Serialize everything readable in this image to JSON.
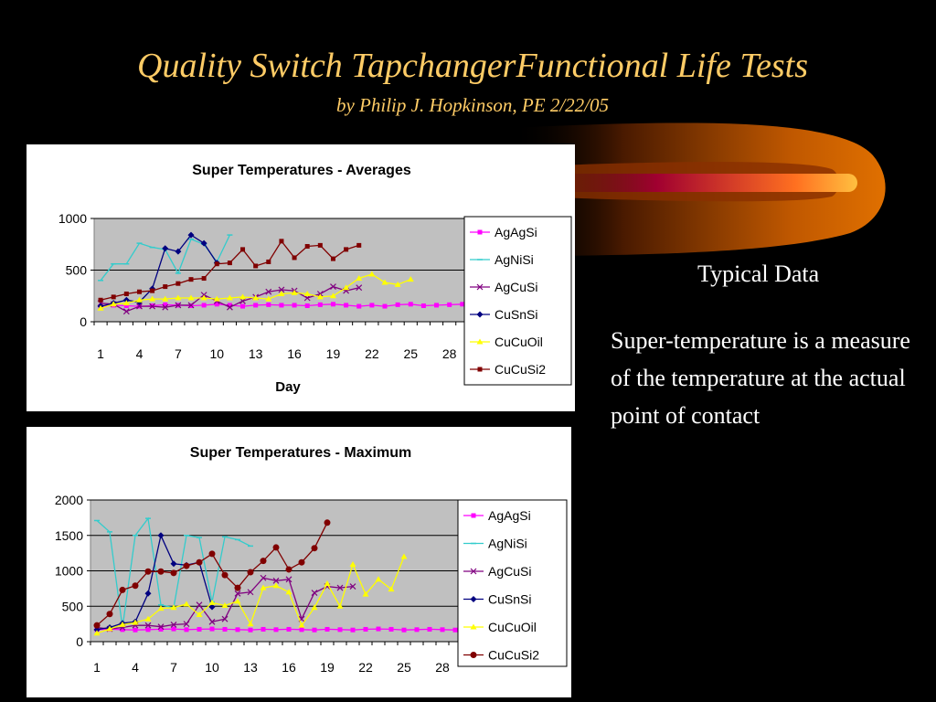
{
  "slide": {
    "title": "Quality Switch TapchangerFunctional Life Tests",
    "subtitle": "by Philip J. Hopkinson, PE   2/22/05",
    "typical_label": "Typical Data",
    "description": "Super-temperature is a measure of the temperature at the actual point of contact"
  },
  "chart_data": [
    {
      "type": "line",
      "title": "Super Temperatures - Averages",
      "xlabel": "Day",
      "ylabel": "",
      "x_ticks": [
        "1",
        "4",
        "7",
        "10",
        "13",
        "16",
        "19",
        "22",
        "25",
        "28"
      ],
      "xlim": [
        1,
        30
      ],
      "ylim": [
        0,
        1000
      ],
      "y_ticks": [
        "0",
        "500",
        "1000"
      ],
      "grid": "horizontal",
      "legend": "right",
      "series": [
        {
          "name": "AgAgSi",
          "color": "#FF00FF",
          "marker": "square",
          "x": [
            1,
            2,
            3,
            4,
            5,
            6,
            7,
            8,
            9,
            10,
            11,
            12,
            13,
            14,
            15,
            16,
            17,
            18,
            19,
            20,
            21,
            22,
            23,
            24,
            25,
            26,
            27,
            28,
            29,
            30
          ],
          "values": [
            150,
            160,
            155,
            150,
            155,
            165,
            160,
            155,
            160,
            170,
            160,
            150,
            160,
            165,
            160,
            160,
            155,
            165,
            170,
            160,
            150,
            160,
            150,
            165,
            170,
            155,
            160,
            165,
            170,
            150
          ]
        },
        {
          "name": "AgNiSi",
          "color": "#33CCCC",
          "marker": "dash",
          "x": [
            1,
            2,
            3,
            4,
            5,
            6,
            7,
            8,
            9,
            10,
            11
          ],
          "values": [
            400,
            560,
            560,
            760,
            720,
            700,
            470,
            800,
            750,
            580,
            840
          ]
        },
        {
          "name": "AgCuSi",
          "color": "#800080",
          "marker": "cross",
          "x": [
            1,
            2,
            3,
            4,
            5,
            6,
            7,
            8,
            9,
            10,
            11,
            12,
            13,
            14,
            15,
            16,
            17,
            18,
            19,
            20,
            21
          ],
          "values": [
            180,
            170,
            100,
            150,
            150,
            140,
            160,
            160,
            260,
            200,
            140,
            200,
            240,
            290,
            310,
            300,
            230,
            270,
            340,
            300,
            330
          ]
        },
        {
          "name": "CuSnSi",
          "color": "#000080",
          "marker": "diamond",
          "x": [
            1,
            2,
            3,
            4,
            5,
            6,
            7,
            8,
            9,
            10
          ],
          "values": [
            150,
            180,
            210,
            190,
            320,
            710,
            680,
            840,
            760,
            570
          ]
        },
        {
          "name": "CuCuOil",
          "color": "#FFFF00",
          "marker": "triangle",
          "x": [
            1,
            2,
            3,
            4,
            5,
            6,
            7,
            8,
            9,
            10,
            11,
            12,
            13,
            14,
            15,
            16,
            17,
            18,
            19,
            20,
            21,
            22,
            23,
            24,
            25
          ],
          "values": [
            130,
            170,
            180,
            210,
            220,
            220,
            230,
            230,
            230,
            220,
            230,
            240,
            230,
            220,
            270,
            280,
            270,
            240,
            250,
            330,
            420,
            460,
            380,
            360,
            410
          ]
        },
        {
          "name": "CuCuSi2",
          "color": "#800000",
          "marker": "square",
          "x": [
            1,
            2,
            3,
            4,
            5,
            6,
            7,
            8,
            9,
            10,
            11,
            12,
            13,
            14,
            15,
            16,
            17,
            18,
            19,
            20,
            21
          ],
          "values": [
            210,
            240,
            270,
            290,
            300,
            340,
            370,
            410,
            420,
            560,
            570,
            700,
            540,
            580,
            780,
            620,
            730,
            740,
            610,
            700,
            740
          ]
        }
      ]
    },
    {
      "type": "line",
      "title": "Super Temperatures - Maximum",
      "xlabel": "",
      "ylabel": "",
      "x_ticks": [
        "1",
        "4",
        "7",
        "10",
        "13",
        "16",
        "19",
        "22",
        "25",
        "28"
      ],
      "xlim": [
        1,
        30
      ],
      "ylim": [
        0,
        2000
      ],
      "y_ticks": [
        "0",
        "500",
        "1000",
        "1500",
        "2000"
      ],
      "grid": "horizontal",
      "legend": "right",
      "series": [
        {
          "name": "AgAgSi",
          "color": "#FF00FF",
          "marker": "square",
          "x": [
            1,
            2,
            3,
            4,
            5,
            6,
            7,
            8,
            9,
            10,
            11,
            12,
            13,
            14,
            15,
            16,
            17,
            18,
            19,
            20,
            21,
            22,
            23,
            24,
            25,
            26,
            27,
            28,
            29,
            30
          ],
          "values": [
            170,
            175,
            170,
            165,
            170,
            175,
            180,
            170,
            175,
            180,
            175,
            170,
            165,
            175,
            170,
            175,
            170,
            165,
            175,
            170,
            165,
            175,
            180,
            175,
            165,
            170,
            175,
            170,
            165,
            175
          ]
        },
        {
          "name": "AgNiSi",
          "color": "#33CCCC",
          "marker": "dash",
          "x": [
            1,
            2,
            3,
            4,
            5,
            6,
            7,
            8,
            9,
            10,
            11,
            12,
            13
          ],
          "values": [
            1710,
            1550,
            200,
            1500,
            1740,
            520,
            480,
            1500,
            1470,
            560,
            1480,
            1440,
            1350
          ]
        },
        {
          "name": "AgCuSi",
          "color": "#800080",
          "marker": "cross",
          "x": [
            1,
            2,
            3,
            4,
            5,
            6,
            7,
            8,
            9,
            10,
            11,
            12,
            13,
            14,
            15,
            16,
            17,
            18,
            19,
            20,
            21
          ],
          "values": [
            200,
            180,
            200,
            230,
            230,
            210,
            240,
            250,
            520,
            280,
            320,
            680,
            700,
            900,
            860,
            880,
            320,
            690,
            780,
            760,
            780
          ]
        },
        {
          "name": "CuSnSi",
          "color": "#000080",
          "marker": "diamond",
          "x": [
            1,
            2,
            3,
            4,
            5,
            6,
            7,
            8,
            9,
            10
          ],
          "values": [
            170,
            200,
            260,
            280,
            680,
            1500,
            1100,
            1080,
            1120,
            490
          ]
        },
        {
          "name": "CuCuOil",
          "color": "#FFFF00",
          "marker": "triangle",
          "x": [
            1,
            2,
            3,
            4,
            5,
            6,
            7,
            8,
            9,
            10,
            11,
            12,
            13,
            14,
            15,
            16,
            17,
            18,
            19,
            20,
            21,
            22,
            23,
            24,
            25
          ],
          "values": [
            120,
            180,
            240,
            270,
            320,
            470,
            480,
            530,
            380,
            550,
            510,
            570,
            250,
            760,
            790,
            700,
            230,
            480,
            820,
            500,
            1090,
            670,
            880,
            740,
            1200
          ]
        },
        {
          "name": "CuCuSi2",
          "color": "#800000",
          "marker": "circle",
          "x": [
            1,
            2,
            3,
            4,
            5,
            6,
            7,
            8,
            9,
            10,
            11,
            12,
            13,
            14,
            15,
            16,
            17,
            18,
            19
          ],
          "values": [
            230,
            390,
            730,
            790,
            990,
            990,
            970,
            1070,
            1120,
            1240,
            940,
            760,
            980,
            1140,
            1330,
            1020,
            1120,
            1320,
            1680
          ]
        }
      ]
    }
  ]
}
